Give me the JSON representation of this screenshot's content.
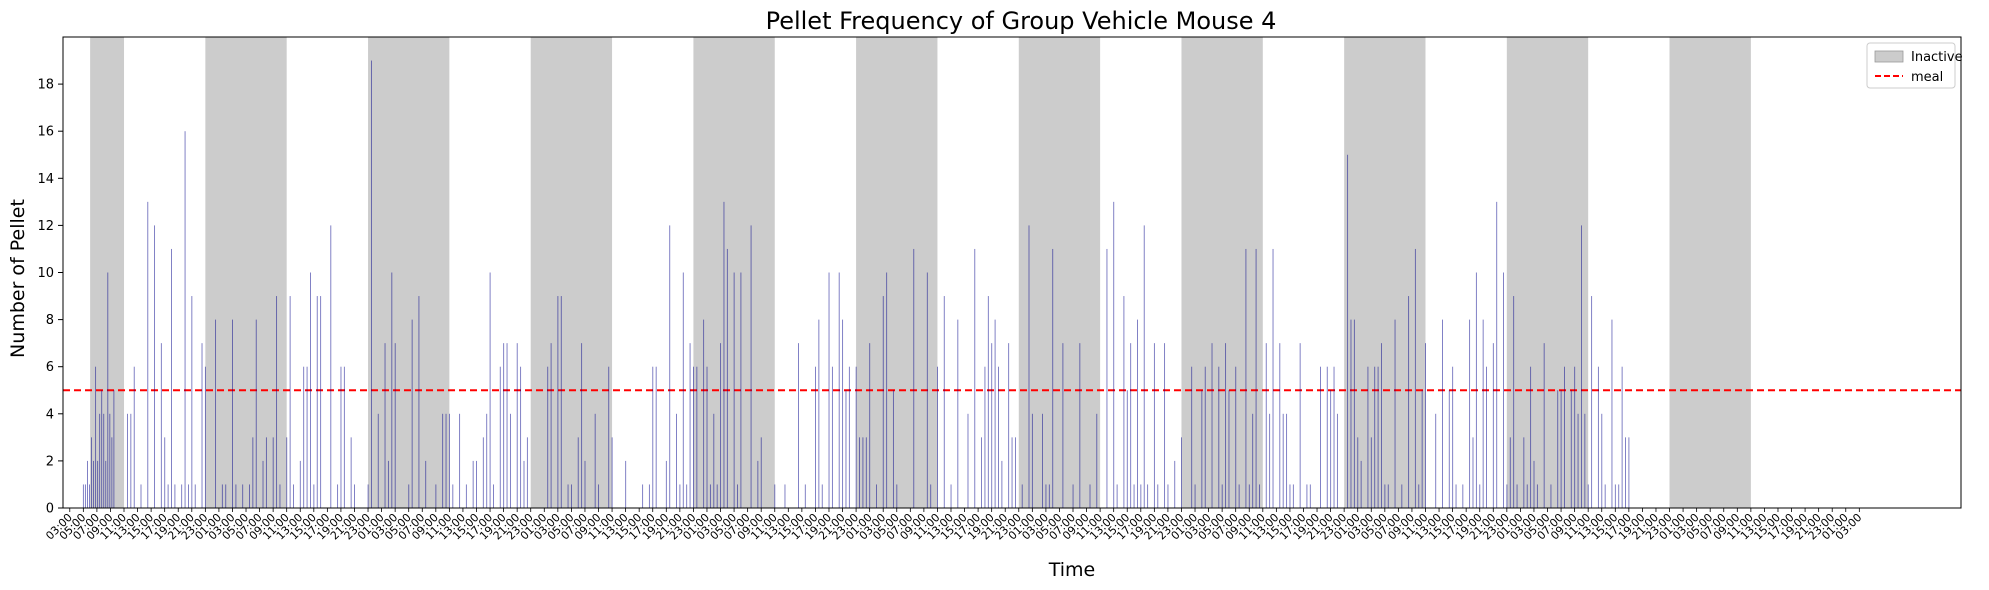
{
  "chart_data": {
    "type": "bar",
    "title": "Pellet Frequency of Group Vehicle Mouse 4",
    "xlabel": "Time",
    "ylabel": "Number of Pellet",
    "ylim": [
      0,
      20
    ],
    "yticks": [
      0,
      2,
      4,
      6,
      8,
      10,
      12,
      14,
      16,
      18
    ],
    "x_range_hours": [
      0,
      280
    ],
    "bar_color": "#00008b",
    "meal_threshold": 5,
    "meal_color": "#ff0000",
    "inactive_color": "#cccccc",
    "legend": {
      "placement": "top-right",
      "entries": [
        "Inactive",
        "meal"
      ]
    },
    "grid": false,
    "inactive_periods": [
      [
        4,
        9
      ],
      [
        21,
        33
      ],
      [
        45,
        57
      ],
      [
        69,
        81
      ],
      [
        93,
        105
      ],
      [
        117,
        129
      ],
      [
        141,
        153
      ],
      [
        165,
        177
      ],
      [
        189,
        201
      ],
      [
        213,
        225
      ],
      [
        237,
        249
      ]
    ],
    "x_tick_labels_note": "dense rotated time labels (e.g. 03:00, 04:00 ...), illegible due to overlap",
    "bars": [
      [
        3.0,
        1
      ],
      [
        3.3,
        1
      ],
      [
        3.6,
        2
      ],
      [
        3.9,
        1
      ],
      [
        4.2,
        3
      ],
      [
        4.5,
        2
      ],
      [
        4.8,
        6
      ],
      [
        5.1,
        2
      ],
      [
        5.4,
        4
      ],
      [
        5.7,
        5
      ],
      [
        6.0,
        4
      ],
      [
        6.3,
        2
      ],
      [
        6.6,
        10
      ],
      [
        6.9,
        4
      ],
      [
        7.2,
        3
      ],
      [
        7.5,
        5
      ],
      [
        9.5,
        4
      ],
      [
        10.0,
        4
      ],
      [
        10.5,
        6
      ],
      [
        11.5,
        1
      ],
      [
        12.5,
        13
      ],
      [
        13.5,
        12
      ],
      [
        14.5,
        7
      ],
      [
        15.0,
        3
      ],
      [
        15.5,
        1
      ],
      [
        16.0,
        11
      ],
      [
        16.5,
        1
      ],
      [
        17.5,
        1
      ],
      [
        18.0,
        16
      ],
      [
        18.5,
        1
      ],
      [
        19.0,
        9
      ],
      [
        19.5,
        1
      ],
      [
        20.5,
        7
      ],
      [
        21.0,
        6
      ],
      [
        22.5,
        8
      ],
      [
        23.5,
        1
      ],
      [
        24.0,
        1
      ],
      [
        25.0,
        8
      ],
      [
        25.5,
        1
      ],
      [
        26.5,
        1
      ],
      [
        27.5,
        1
      ],
      [
        28.0,
        3
      ],
      [
        28.5,
        8
      ],
      [
        29.5,
        2
      ],
      [
        30.0,
        3
      ],
      [
        31.0,
        3
      ],
      [
        31.5,
        9
      ],
      [
        32.0,
        1
      ],
      [
        33.0,
        3
      ],
      [
        33.5,
        9
      ],
      [
        34.0,
        1
      ],
      [
        35.0,
        2
      ],
      [
        35.5,
        6
      ],
      [
        36.0,
        6
      ],
      [
        36.5,
        10
      ],
      [
        37.0,
        1
      ],
      [
        37.5,
        9
      ],
      [
        38.0,
        9
      ],
      [
        39.5,
        12
      ],
      [
        40.5,
        1
      ],
      [
        41.0,
        6
      ],
      [
        41.5,
        6
      ],
      [
        42.5,
        3
      ],
      [
        43.0,
        1
      ],
      [
        45.0,
        1
      ],
      [
        45.5,
        19
      ],
      [
        46.5,
        4
      ],
      [
        47.5,
        7
      ],
      [
        48.0,
        2
      ],
      [
        48.5,
        10
      ],
      [
        49.0,
        7
      ],
      [
        51.0,
        1
      ],
      [
        51.5,
        8
      ],
      [
        52.5,
        9
      ],
      [
        53.5,
        2
      ],
      [
        55.0,
        1
      ],
      [
        56.0,
        4
      ],
      [
        56.5,
        4
      ],
      [
        57.0,
        4
      ],
      [
        57.5,
        1
      ],
      [
        58.5,
        4
      ],
      [
        59.5,
        1
      ],
      [
        60.5,
        2
      ],
      [
        61.0,
        2
      ],
      [
        62.0,
        3
      ],
      [
        62.5,
        4
      ],
      [
        63.0,
        10
      ],
      [
        63.5,
        1
      ],
      [
        64.5,
        6
      ],
      [
        65.0,
        7
      ],
      [
        65.5,
        7
      ],
      [
        66.0,
        4
      ],
      [
        67.0,
        7
      ],
      [
        67.5,
        6
      ],
      [
        68.0,
        2
      ],
      [
        68.5,
        3
      ],
      [
        71.5,
        6
      ],
      [
        72.0,
        7
      ],
      [
        73.0,
        9
      ],
      [
        73.5,
        9
      ],
      [
        74.5,
        1
      ],
      [
        75.0,
        1
      ],
      [
        76.0,
        3
      ],
      [
        76.5,
        7
      ],
      [
        77.0,
        2
      ],
      [
        78.5,
        4
      ],
      [
        79.0,
        1
      ],
      [
        80.5,
        6
      ],
      [
        81.0,
        3
      ],
      [
        83.0,
        2
      ],
      [
        85.5,
        1
      ],
      [
        86.5,
        1
      ],
      [
        87.0,
        6
      ],
      [
        87.5,
        6
      ],
      [
        89.0,
        2
      ],
      [
        89.5,
        12
      ],
      [
        90.5,
        4
      ],
      [
        91.0,
        1
      ],
      [
        91.5,
        10
      ],
      [
        92.0,
        1
      ],
      [
        92.5,
        7
      ],
      [
        93.0,
        6
      ],
      [
        93.5,
        6
      ],
      [
        94.5,
        8
      ],
      [
        95.0,
        6
      ],
      [
        95.5,
        1
      ],
      [
        96.0,
        4
      ],
      [
        96.5,
        1
      ],
      [
        97.0,
        7
      ],
      [
        97.5,
        13
      ],
      [
        98.0,
        11
      ],
      [
        99.0,
        10
      ],
      [
        99.5,
        1
      ],
      [
        100.0,
        10
      ],
      [
        101.5,
        12
      ],
      [
        102.5,
        2
      ],
      [
        103.0,
        3
      ],
      [
        105.0,
        1
      ],
      [
        106.5,
        1
      ],
      [
        108.5,
        7
      ],
      [
        109.5,
        1
      ],
      [
        111.0,
        6
      ],
      [
        111.5,
        8
      ],
      [
        112.0,
        1
      ],
      [
        113.0,
        10
      ],
      [
        113.5,
        6
      ],
      [
        114.5,
        10
      ],
      [
        115.0,
        8
      ],
      [
        115.5,
        5
      ],
      [
        116.0,
        6
      ],
      [
        117.0,
        6
      ],
      [
        117.5,
        3
      ],
      [
        118.0,
        3
      ],
      [
        118.5,
        3
      ],
      [
        119.0,
        7
      ],
      [
        120.0,
        1
      ],
      [
        121.0,
        9
      ],
      [
        121.5,
        10
      ],
      [
        122.5,
        5
      ],
      [
        123.0,
        1
      ],
      [
        125.5,
        11
      ],
      [
        127.5,
        10
      ],
      [
        128.0,
        1
      ],
      [
        129.0,
        6
      ],
      [
        130.0,
        9
      ],
      [
        131.0,
        1
      ],
      [
        132.0,
        8
      ],
      [
        133.5,
        4
      ],
      [
        134.5,
        11
      ],
      [
        135.5,
        3
      ],
      [
        136.0,
        6
      ],
      [
        136.5,
        9
      ],
      [
        137.0,
        7
      ],
      [
        137.5,
        8
      ],
      [
        138.0,
        6
      ],
      [
        138.5,
        2
      ],
      [
        139.5,
        7
      ],
      [
        140.0,
        3
      ],
      [
        140.5,
        3
      ],
      [
        141.5,
        1
      ],
      [
        142.5,
        12
      ],
      [
        143.0,
        4
      ],
      [
        144.5,
        4
      ],
      [
        145.0,
        1
      ],
      [
        145.5,
        1
      ],
      [
        146.0,
        11
      ],
      [
        147.5,
        7
      ],
      [
        149.0,
        1
      ],
      [
        150.0,
        7
      ],
      [
        151.5,
        1
      ],
      [
        152.5,
        4
      ],
      [
        154.0,
        11
      ],
      [
        155.0,
        13
      ],
      [
        155.5,
        1
      ],
      [
        156.5,
        9
      ],
      [
        157.0,
        5
      ],
      [
        157.5,
        7
      ],
      [
        158.0,
        1
      ],
      [
        158.5,
        8
      ],
      [
        159.0,
        1
      ],
      [
        159.5,
        12
      ],
      [
        160.0,
        1
      ],
      [
        161.0,
        7
      ],
      [
        161.5,
        1
      ],
      [
        162.5,
        7
      ],
      [
        163.0,
        1
      ],
      [
        164.0,
        2
      ],
      [
        165.0,
        3
      ],
      [
        166.5,
        6
      ],
      [
        167.0,
        1
      ],
      [
        168.0,
        5
      ],
      [
        168.5,
        6
      ],
      [
        169.5,
        7
      ],
      [
        170.5,
        6
      ],
      [
        171.0,
        1
      ],
      [
        171.5,
        7
      ],
      [
        172.0,
        5
      ],
      [
        173.0,
        6
      ],
      [
        173.5,
        1
      ],
      [
        174.5,
        11
      ],
      [
        175.0,
        1
      ],
      [
        175.5,
        4
      ],
      [
        176.0,
        11
      ],
      [
        176.5,
        1
      ],
      [
        177.5,
        7
      ],
      [
        178.0,
        4
      ],
      [
        178.5,
        11
      ],
      [
        179.5,
        7
      ],
      [
        180.0,
        4
      ],
      [
        180.5,
        4
      ],
      [
        181.0,
        1
      ],
      [
        181.5,
        1
      ],
      [
        182.5,
        7
      ],
      [
        183.5,
        1
      ],
      [
        184.0,
        1
      ],
      [
        185.5,
        6
      ],
      [
        186.5,
        6
      ],
      [
        187.0,
        5
      ],
      [
        187.5,
        6
      ],
      [
        188.0,
        4
      ],
      [
        189.5,
        15
      ],
      [
        190.0,
        8
      ],
      [
        190.5,
        8
      ],
      [
        191.0,
        3
      ],
      [
        191.5,
        2
      ],
      [
        192.5,
        6
      ],
      [
        193.0,
        3
      ],
      [
        193.5,
        6
      ],
      [
        194.0,
        6
      ],
      [
        194.5,
        7
      ],
      [
        195.0,
        1
      ],
      [
        195.5,
        1
      ],
      [
        196.5,
        8
      ],
      [
        197.5,
        1
      ],
      [
        198.5,
        9
      ],
      [
        199.5,
        11
      ],
      [
        200.0,
        1
      ],
      [
        200.5,
        5
      ],
      [
        201.0,
        7
      ],
      [
        202.5,
        4
      ],
      [
        203.5,
        8
      ],
      [
        204.5,
        5
      ],
      [
        205.0,
        6
      ],
      [
        205.5,
        1
      ],
      [
        206.5,
        1
      ],
      [
        207.5,
        8
      ],
      [
        208.0,
        3
      ],
      [
        208.5,
        10
      ],
      [
        209.0,
        1
      ],
      [
        209.5,
        8
      ],
      [
        210.0,
        6
      ],
      [
        211.0,
        7
      ],
      [
        211.5,
        13
      ],
      [
        212.5,
        10
      ],
      [
        213.0,
        1
      ],
      [
        213.5,
        3
      ],
      [
        214.0,
        9
      ],
      [
        214.5,
        1
      ],
      [
        215.5,
        3
      ],
      [
        216.0,
        1
      ],
      [
        216.5,
        6
      ],
      [
        217.0,
        2
      ],
      [
        217.5,
        1
      ],
      [
        218.5,
        7
      ],
      [
        219.5,
        1
      ],
      [
        220.5,
        5
      ],
      [
        221.0,
        5
      ],
      [
        221.5,
        6
      ],
      [
        222.5,
        5
      ],
      [
        223.0,
        6
      ],
      [
        223.5,
        4
      ],
      [
        224.0,
        12
      ],
      [
        224.5,
        4
      ],
      [
        225.0,
        1
      ],
      [
        225.5,
        9
      ],
      [
        226.5,
        6
      ],
      [
        227.0,
        4
      ],
      [
        227.5,
        1
      ],
      [
        228.5,
        8
      ],
      [
        229.0,
        1
      ],
      [
        229.5,
        1
      ],
      [
        230.0,
        6
      ],
      [
        230.5,
        3
      ],
      [
        231.0,
        3
      ]
    ]
  }
}
